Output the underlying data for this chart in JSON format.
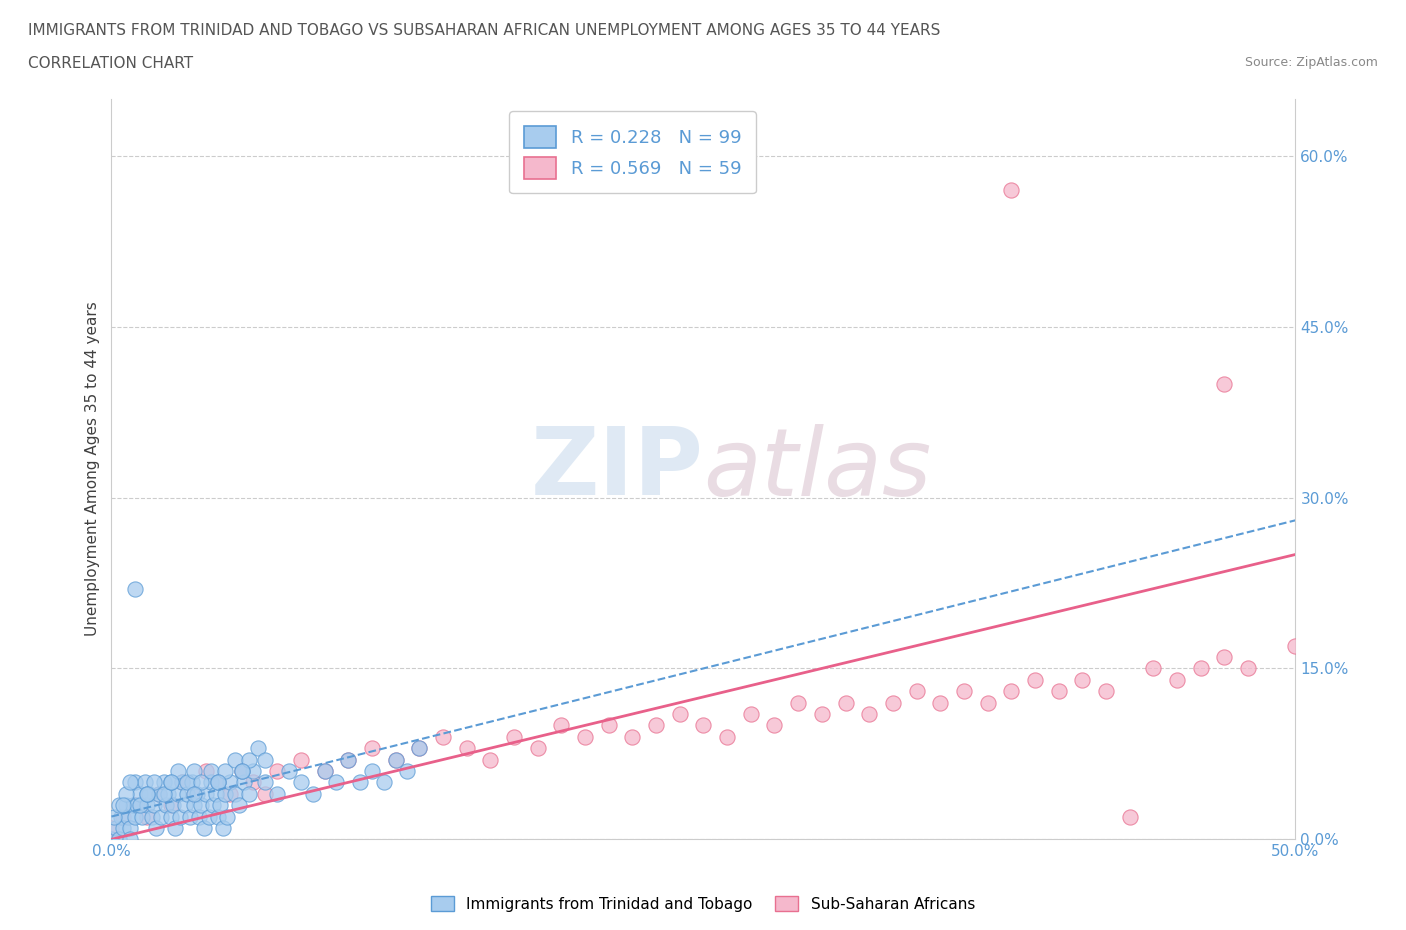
{
  "title_line1": "IMMIGRANTS FROM TRINIDAD AND TOBAGO VS SUBSAHARAN AFRICAN UNEMPLOYMENT AMONG AGES 35 TO 44 YEARS",
  "title_line2": "CORRELATION CHART",
  "source_text": "Source: ZipAtlas.com",
  "ylabel": "Unemployment Among Ages 35 to 44 years",
  "xlim": [
    0.0,
    0.5
  ],
  "ylim": [
    0.0,
    0.65
  ],
  "xtick_positions": [
    0.0,
    0.5
  ],
  "xtick_labels": [
    "0.0%",
    "50.0%"
  ],
  "ytick_values": [
    0.0,
    0.15,
    0.3,
    0.45,
    0.6
  ],
  "ytick_labels": [
    "0.0%",
    "15.0%",
    "30.0%",
    "45.0%",
    "60.0%"
  ],
  "blue_face_color": "#A8CCEE",
  "blue_edge_color": "#5B9BD5",
  "pink_face_color": "#F5B8CC",
  "pink_edge_color": "#E87090",
  "blue_line_color": "#5B9BD5",
  "pink_line_color": "#E8608A",
  "legend_label1": "R = 0.228   N = 99",
  "legend_label2": "R = 0.569   N = 59",
  "watermark_zip": "ZIP",
  "watermark_atlas": "atlas",
  "grid_color": "#CCCCCC",
  "title_color": "#555555",
  "axis_tick_color": "#5B9BD5",
  "bottom_legend1": "Immigrants from Trinidad and Tobago",
  "bottom_legend2": "Sub-Saharan Africans",
  "blue_x": [
    0.0,
    0.002,
    0.003,
    0.004,
    0.005,
    0.006,
    0.007,
    0.008,
    0.009,
    0.01,
    0.01,
    0.011,
    0.012,
    0.013,
    0.014,
    0.015,
    0.016,
    0.017,
    0.018,
    0.019,
    0.02,
    0.021,
    0.022,
    0.023,
    0.024,
    0.025,
    0.026,
    0.027,
    0.028,
    0.029,
    0.03,
    0.031,
    0.032,
    0.033,
    0.034,
    0.035,
    0.036,
    0.037,
    0.038,
    0.039,
    0.04,
    0.041,
    0.042,
    0.043,
    0.044,
    0.045,
    0.046,
    0.047,
    0.048,
    0.049,
    0.05,
    0.052,
    0.054,
    0.056,
    0.058,
    0.06,
    0.065,
    0.07,
    0.075,
    0.08,
    0.085,
    0.09,
    0.095,
    0.1,
    0.105,
    0.11,
    0.115,
    0.12,
    0.125,
    0.13,
    0.001,
    0.003,
    0.006,
    0.008,
    0.012,
    0.015,
    0.018,
    0.022,
    0.025,
    0.028,
    0.032,
    0.035,
    0.038,
    0.042,
    0.045,
    0.048,
    0.052,
    0.055,
    0.058,
    0.062,
    0.005,
    0.015,
    0.025,
    0.035,
    0.045,
    0.055,
    0.065,
    0.01,
    0.008
  ],
  "blue_y": [
    0.0,
    0.01,
    0.0,
    0.02,
    0.01,
    0.03,
    0.02,
    0.01,
    0.03,
    0.02,
    0.05,
    0.03,
    0.04,
    0.02,
    0.05,
    0.03,
    0.04,
    0.02,
    0.03,
    0.01,
    0.04,
    0.02,
    0.05,
    0.03,
    0.04,
    0.02,
    0.03,
    0.01,
    0.04,
    0.02,
    0.05,
    0.03,
    0.04,
    0.02,
    0.05,
    0.03,
    0.04,
    0.02,
    0.03,
    0.01,
    0.04,
    0.02,
    0.05,
    0.03,
    0.04,
    0.02,
    0.03,
    0.01,
    0.04,
    0.02,
    0.05,
    0.04,
    0.03,
    0.05,
    0.04,
    0.06,
    0.05,
    0.04,
    0.06,
    0.05,
    0.04,
    0.06,
    0.05,
    0.07,
    0.05,
    0.06,
    0.05,
    0.07,
    0.06,
    0.08,
    0.02,
    0.03,
    0.04,
    0.05,
    0.03,
    0.04,
    0.05,
    0.04,
    0.05,
    0.06,
    0.05,
    0.06,
    0.05,
    0.06,
    0.05,
    0.06,
    0.07,
    0.06,
    0.07,
    0.08,
    0.03,
    0.04,
    0.05,
    0.04,
    0.05,
    0.06,
    0.07,
    0.22,
    0.0
  ],
  "pink_x": [
    0.0,
    0.005,
    0.01,
    0.015,
    0.02,
    0.025,
    0.03,
    0.035,
    0.04,
    0.045,
    0.05,
    0.055,
    0.06,
    0.065,
    0.07,
    0.08,
    0.09,
    0.1,
    0.11,
    0.12,
    0.13,
    0.14,
    0.15,
    0.16,
    0.17,
    0.18,
    0.19,
    0.2,
    0.21,
    0.22,
    0.23,
    0.24,
    0.25,
    0.26,
    0.27,
    0.28,
    0.29,
    0.3,
    0.31,
    0.32,
    0.33,
    0.34,
    0.35,
    0.36,
    0.37,
    0.38,
    0.39,
    0.4,
    0.41,
    0.42,
    0.43,
    0.44,
    0.45,
    0.46,
    0.47,
    0.48,
    0.5,
    0.38,
    0.47
  ],
  "pink_y": [
    0.01,
    0.02,
    0.03,
    0.02,
    0.04,
    0.03,
    0.05,
    0.04,
    0.06,
    0.05,
    0.04,
    0.06,
    0.05,
    0.04,
    0.06,
    0.07,
    0.06,
    0.07,
    0.08,
    0.07,
    0.08,
    0.09,
    0.08,
    0.07,
    0.09,
    0.08,
    0.1,
    0.09,
    0.1,
    0.09,
    0.1,
    0.11,
    0.1,
    0.09,
    0.11,
    0.1,
    0.12,
    0.11,
    0.12,
    0.11,
    0.12,
    0.13,
    0.12,
    0.13,
    0.12,
    0.13,
    0.14,
    0.13,
    0.14,
    0.13,
    0.02,
    0.15,
    0.14,
    0.15,
    0.16,
    0.15,
    0.17,
    0.57,
    0.4
  ],
  "blue_trend_x": [
    0.0,
    0.5
  ],
  "blue_trend_y": [
    0.02,
    0.28
  ],
  "pink_trend_x": [
    0.0,
    0.5
  ],
  "pink_trend_y": [
    0.0,
    0.25
  ]
}
